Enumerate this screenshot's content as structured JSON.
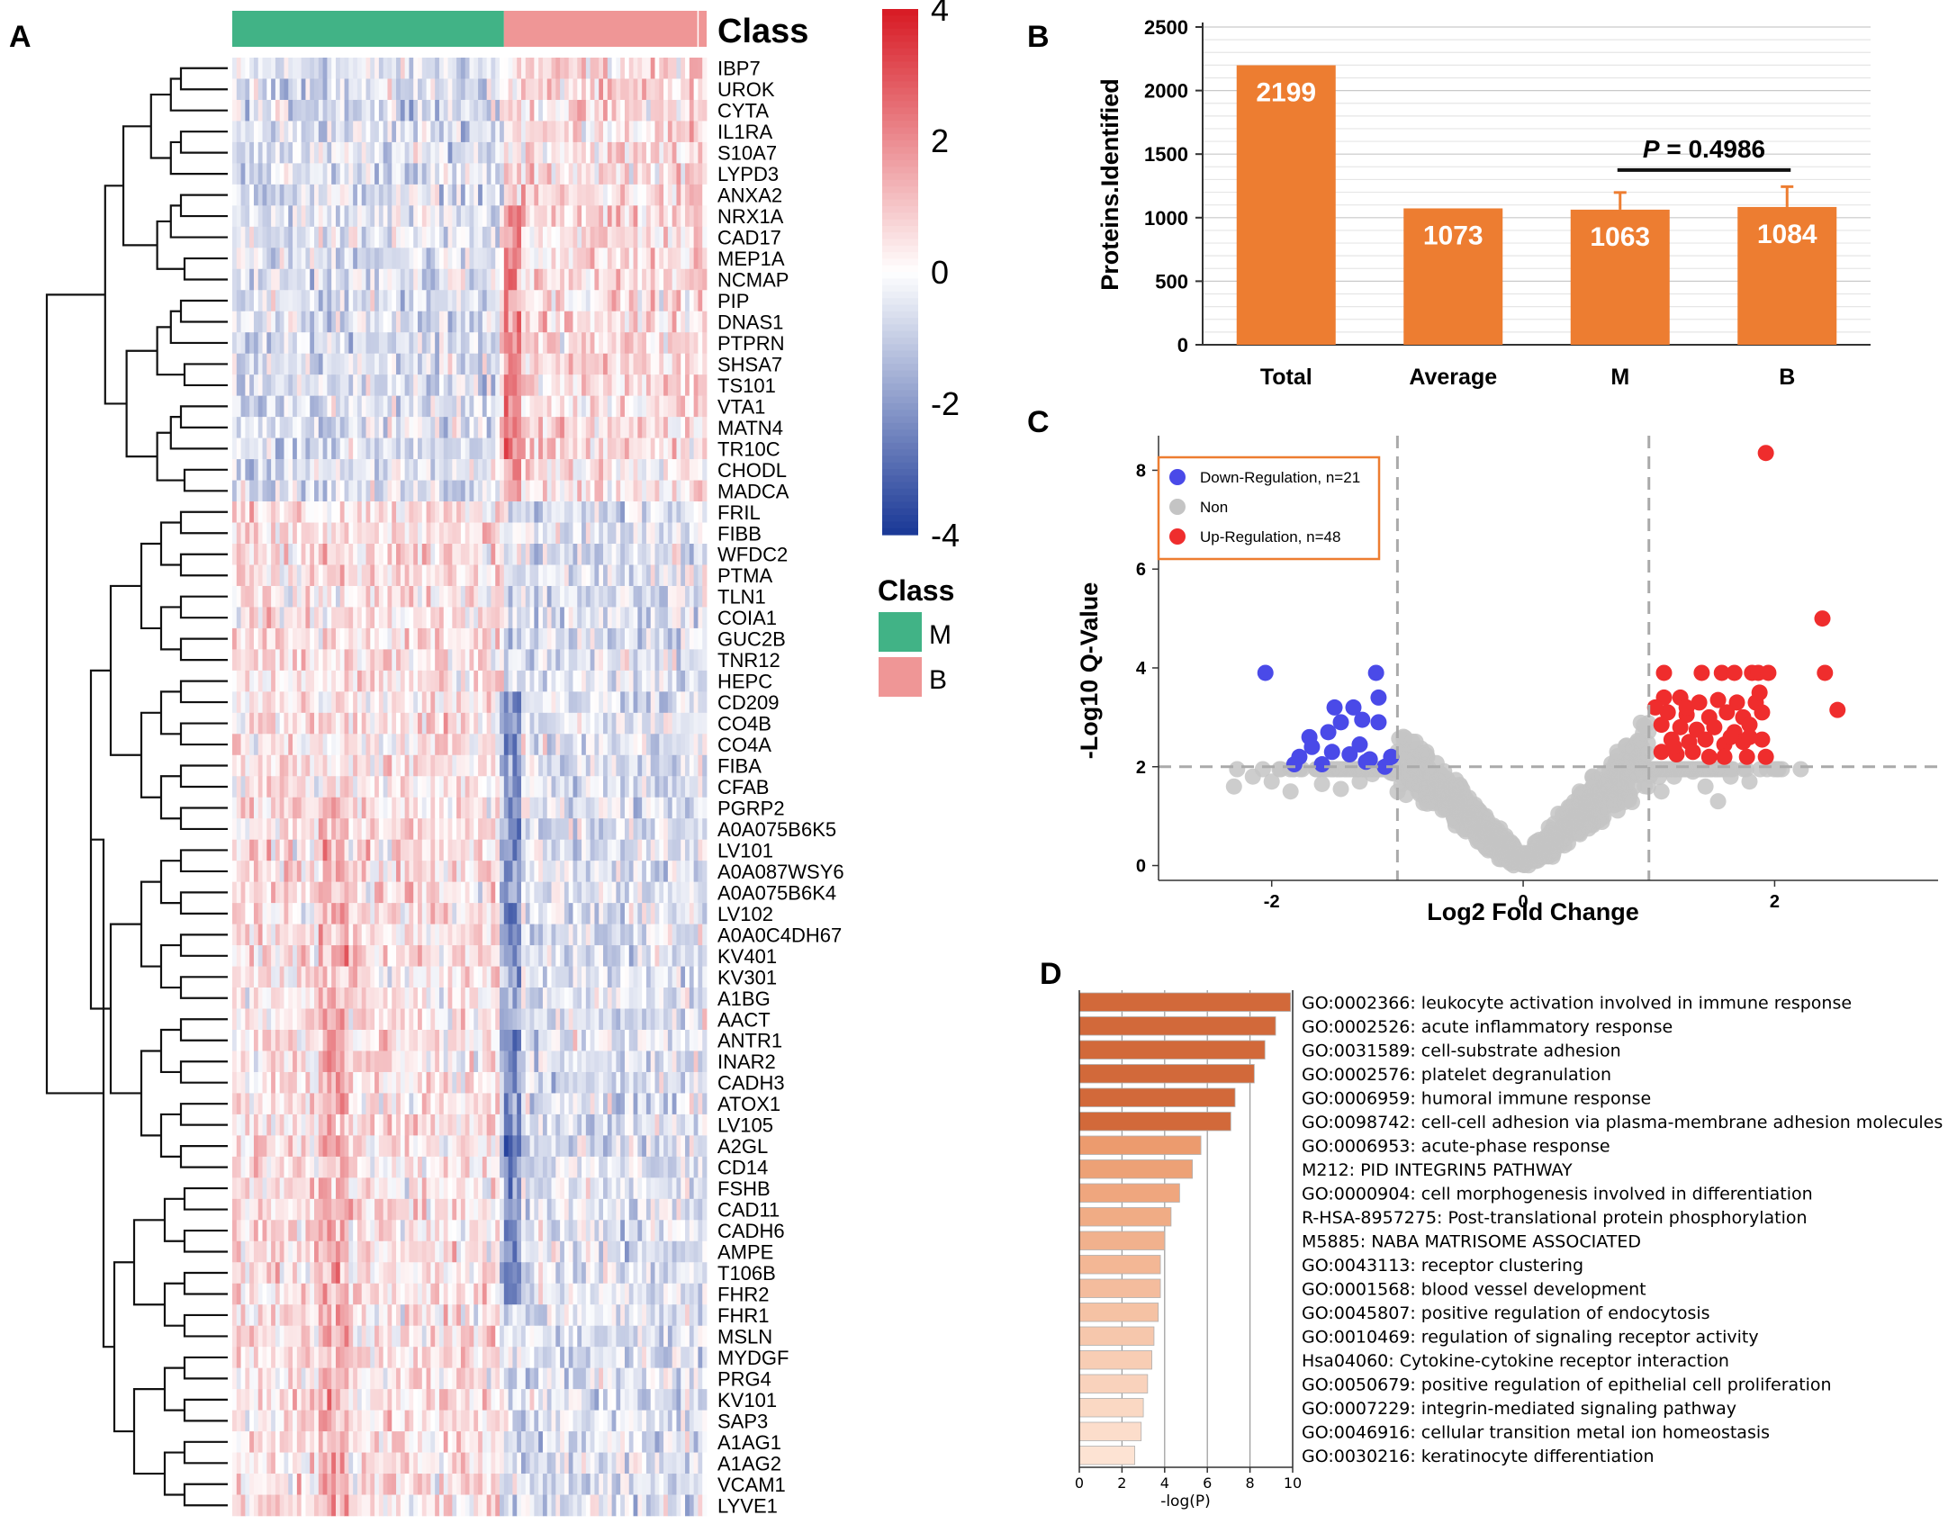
{
  "panels": {
    "a": "A",
    "b": "B",
    "c": "C",
    "d": "D"
  },
  "colors": {
    "class_m": "#41b386",
    "class_b": "#ef9696",
    "bar_orange": "#ed7d31",
    "down": "#4a4ae8",
    "up": "#ef2d2d",
    "non": "#c4c4c4",
    "go_dark": "#d2693a",
    "go_light": "#fde3d3"
  },
  "chart_data": [
    {
      "id": "heatmap",
      "type": "heatmap",
      "class_title": "Class",
      "legend_title": "Class",
      "classes": [
        {
          "name": "M",
          "color": "#41b386"
        },
        {
          "name": "B",
          "color": "#ef9696"
        }
      ],
      "class_split_fraction": 0.57,
      "colorbar_ticks": [
        "4",
        "2",
        "0",
        "-2",
        "-4"
      ],
      "colorbar_range": [
        -4,
        4
      ],
      "n_samples": 110,
      "rows": [
        "IBP7",
        "UROK",
        "CYTA",
        "IL1RA",
        "S10A7",
        "LYPD3",
        "ANXA2",
        "NRX1A",
        "CAD17",
        "MEP1A",
        "NCMAP",
        "PIP",
        "DNAS1",
        "PTPRN",
        "SHSA7",
        "TS101",
        "VTA1",
        "MATN4",
        "TR10C",
        "CHODL",
        "MADCA",
        "FRIL",
        "FIBB",
        "WFDC2",
        "PTMA",
        "TLN1",
        "COIA1",
        "GUC2B",
        "TNR12",
        "HEPC",
        "CD209",
        "CO4B",
        "CO4A",
        "FIBA",
        "CFAB",
        "PGRP2",
        "A0A075B6K5",
        "LV101",
        "A0A087WSY6",
        "A0A075B6K4",
        "LV102",
        "A0A0C4DH67",
        "KV401",
        "KV301",
        "A1BG",
        "AACT",
        "ANTR1",
        "INAR2",
        "CADH3",
        "ATOX1",
        "LV105",
        "A2GL",
        "CD14",
        "FSHB",
        "CAD11",
        "CADH6",
        "AMPE",
        "T106B",
        "FHR2",
        "FHR1",
        "MSLN",
        "MYDGF",
        "PRG4",
        "KV101",
        "SAP3",
        "A1AG1",
        "A1AG2",
        "VCAM1",
        "LYVE1"
      ]
    },
    {
      "id": "proteins",
      "type": "bar",
      "categories": [
        "Total",
        "Average",
        "M",
        "B"
      ],
      "values": [
        2199,
        1073,
        1063,
        1084
      ],
      "labels": [
        "2199",
        "1073",
        "1063",
        "1084"
      ],
      "errors": [
        0,
        0,
        135,
        160
      ],
      "ylabel": "Proteins.Identified",
      "ylim": [
        0,
        2500
      ],
      "yticks": [
        "0",
        "500",
        "1000",
        "1500",
        "2000",
        "2500"
      ],
      "annotation": {
        "label_p": "P",
        "label_rest": " = 0.4986",
        "between": [
          "M",
          "B"
        ]
      }
    },
    {
      "id": "volcano",
      "type": "scatter",
      "xlabel": "Log2 Fold Change",
      "ylabel": "-Log10 Q-Value",
      "xlim": [
        -2.9,
        3.3
      ],
      "ylim": [
        -0.3,
        8.7
      ],
      "xticks": [
        "-2",
        "0",
        "2"
      ],
      "yticks": [
        "0",
        "2",
        "4",
        "6",
        "8"
      ],
      "vlines": [
        -1,
        1
      ],
      "hline": 2,
      "legend": [
        {
          "label": "Down-Regulation, n=21",
          "color": "#4a4ae8"
        },
        {
          "label": "Non",
          "color": "#c4c4c4"
        },
        {
          "label": "Up-Regulation, n=48",
          "color": "#ef2d2d"
        }
      ],
      "down": [
        [
          -2.05,
          3.9
        ],
        [
          -1.17,
          3.9
        ],
        [
          -1.15,
          3.4
        ],
        [
          -1.35,
          3.2
        ],
        [
          -1.5,
          3.2
        ],
        [
          -1.28,
          2.95
        ],
        [
          -1.45,
          2.9
        ],
        [
          -1.15,
          2.9
        ],
        [
          -1.55,
          2.7
        ],
        [
          -1.7,
          2.6
        ],
        [
          -1.3,
          2.45
        ],
        [
          -1.52,
          2.3
        ],
        [
          -1.38,
          2.25
        ],
        [
          -1.78,
          2.2
        ],
        [
          -1.22,
          2.15
        ],
        [
          -1.05,
          2.2
        ],
        [
          -1.82,
          2.05
        ],
        [
          -1.6,
          2.05
        ],
        [
          -1.25,
          2.1
        ],
        [
          -1.1,
          2.0
        ],
        [
          -1.68,
          2.4
        ]
      ],
      "up": [
        [
          1.93,
          8.35
        ],
        [
          2.38,
          5.0
        ],
        [
          2.4,
          3.9
        ],
        [
          2.5,
          3.15
        ],
        [
          1.12,
          3.9
        ],
        [
          1.42,
          3.9
        ],
        [
          1.58,
          3.9
        ],
        [
          1.68,
          3.9
        ],
        [
          1.82,
          3.9
        ],
        [
          1.87,
          3.9
        ],
        [
          1.95,
          3.9
        ],
        [
          1.12,
          3.4
        ],
        [
          1.25,
          3.4
        ],
        [
          1.4,
          3.3
        ],
        [
          1.55,
          3.35
        ],
        [
          1.7,
          3.3
        ],
        [
          1.85,
          3.3
        ],
        [
          1.15,
          3.1
        ],
        [
          1.3,
          3.05
        ],
        [
          1.48,
          3.0
        ],
        [
          1.62,
          3.1
        ],
        [
          1.75,
          3.0
        ],
        [
          1.9,
          3.1
        ],
        [
          1.1,
          2.85
        ],
        [
          1.25,
          2.8
        ],
        [
          1.38,
          2.75
        ],
        [
          1.52,
          2.8
        ],
        [
          1.68,
          2.7
        ],
        [
          1.8,
          2.85
        ],
        [
          1.18,
          2.55
        ],
        [
          1.32,
          2.5
        ],
        [
          1.45,
          2.55
        ],
        [
          1.6,
          2.45
        ],
        [
          1.75,
          2.5
        ],
        [
          1.9,
          2.55
        ],
        [
          1.1,
          2.3
        ],
        [
          1.22,
          2.25
        ],
        [
          1.6,
          2.2
        ],
        [
          1.78,
          2.2
        ],
        [
          1.93,
          2.2
        ],
        [
          1.2,
          2.4
        ],
        [
          1.35,
          2.3
        ],
        [
          1.48,
          2.2
        ],
        [
          1.65,
          2.6
        ],
        [
          1.8,
          2.6
        ],
        [
          1.3,
          3.2
        ],
        [
          1.88,
          3.5
        ],
        [
          1.05,
          3.2
        ]
      ]
    },
    {
      "id": "go",
      "type": "bar",
      "orientation": "horizontal",
      "xlabel": "-log(P)",
      "xlim": [
        0,
        10
      ],
      "xticks": [
        "0",
        "2",
        "4",
        "6",
        "8",
        "10"
      ],
      "terms": [
        "GO:0002366: leukocyte activation involved in immune response",
        "GO:0002526: acute inflammatory response",
        "GO:0031589: cell-substrate adhesion",
        "GO:0002576: platelet degranulation",
        "GO:0006959: humoral immune response",
        "GO:0098742: cell-cell adhesion via plasma-membrane adhesion molecules",
        "GO:0006953: acute-phase response",
        "M212: PID INTEGRIN5 PATHWAY",
        "GO:0000904: cell morphogenesis involved in differentiation",
        "R-HSA-8957275: Post-translational protein phosphorylation",
        "M5885: NABA MATRISOME ASSOCIATED",
        "GO:0043113: receptor clustering",
        "GO:0001568: blood vessel development",
        "GO:0045807: positive regulation of endocytosis",
        "GO:0010469: regulation of signaling receptor activity",
        "Hsa04060: Cytokine-cytokine receptor interaction",
        "GO:0050679: positive regulation of epithelial cell proliferation",
        "GO:0007229: integrin-mediated signaling pathway",
        "GO:0046916: cellular transition metal ion homeostasis",
        "GO:0030216: keratinocyte differentiation"
      ],
      "values": [
        9.9,
        9.2,
        8.7,
        8.2,
        7.3,
        7.1,
        5.7,
        5.3,
        4.7,
        4.3,
        4.0,
        3.8,
        3.8,
        3.7,
        3.5,
        3.4,
        3.2,
        3.0,
        2.9,
        2.6
      ]
    }
  ]
}
